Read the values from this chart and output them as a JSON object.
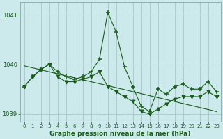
{
  "title": "Graphe pression niveau de la mer (hPa)",
  "background_color": "#cce9ec",
  "line_color": "#1a5c1a",
  "grid_color": "#aacdd1",
  "x_values": [
    0,
    1,
    2,
    3,
    4,
    5,
    6,
    7,
    8,
    9,
    10,
    11,
    12,
    13,
    14,
    15,
    16,
    17,
    18,
    19,
    20,
    21,
    22,
    23
  ],
  "series_plus": [
    1039.55,
    1039.75,
    1039.9,
    1040.0,
    1039.85,
    1039.75,
    1039.7,
    1039.75,
    1039.85,
    1040.1,
    1041.05,
    1040.65,
    1039.95,
    1039.55,
    1039.15,
    1039.05,
    1039.5,
    1039.4,
    1039.55,
    1039.6,
    1039.5,
    1039.5,
    1039.65,
    1039.45
  ],
  "series_tri": [
    1039.55,
    1039.75,
    1039.9,
    1040.0,
    1039.75,
    1039.65,
    1039.65,
    1039.7,
    1039.75,
    1039.85,
    1039.55,
    1039.45,
    1039.35,
    1039.25,
    1039.05,
    1039.0,
    1039.1,
    1039.2,
    1039.3,
    1039.35,
    1039.35,
    1039.35,
    1039.45,
    1039.35
  ],
  "series_line": [
    1039.97,
    1039.93,
    1039.89,
    1039.85,
    1039.81,
    1039.77,
    1039.73,
    1039.69,
    1039.65,
    1039.61,
    1039.57,
    1039.53,
    1039.49,
    1039.45,
    1039.41,
    1039.37,
    1039.33,
    1039.29,
    1039.25,
    1039.21,
    1039.17,
    1039.13,
    1039.09,
    1039.05
  ],
  "ylim": [
    1038.85,
    1041.25
  ],
  "yticks": [
    1039,
    1040,
    1041
  ],
  "xlim": [
    -0.5,
    23.5
  ],
  "figsize": [
    3.2,
    2.0
  ],
  "dpi": 100
}
